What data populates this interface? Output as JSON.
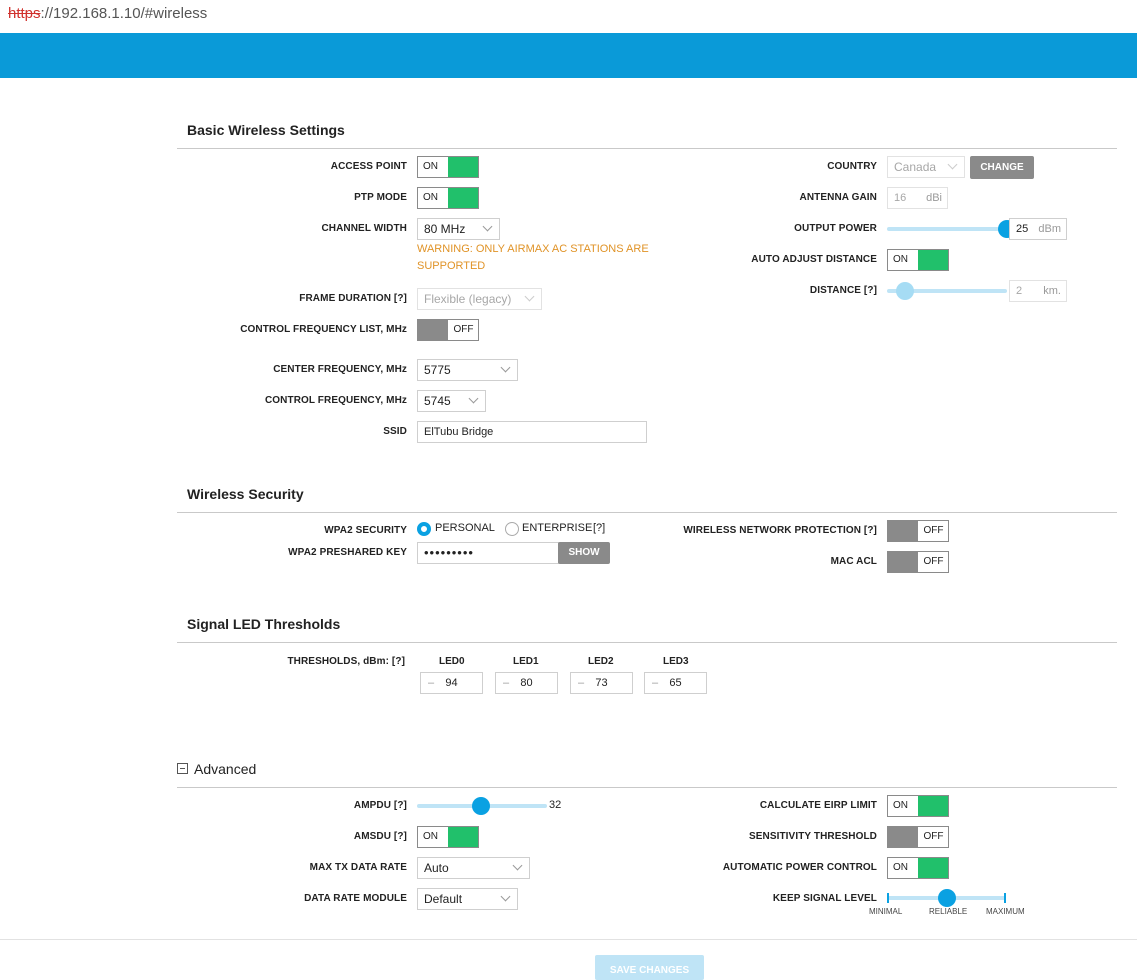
{
  "url": {
    "scheme": "https",
    "rest": "://192.168.1.10/#wireless"
  },
  "colors": {
    "brand": "#0a9ad8",
    "toggle_on": "#21c06b",
    "toggle_off": "#8a8a8a",
    "warning": "#e09327",
    "slider": "#0aa1e2"
  },
  "basic": {
    "title": "Basic Wireless Settings",
    "access_point": {
      "label": "ACCESS POINT",
      "state": "ON"
    },
    "ptp_mode": {
      "label": "PTP MODE",
      "state": "ON"
    },
    "channel_width": {
      "label": "CHANNEL WIDTH",
      "value": "80 MHz"
    },
    "warning": "WARNING: ONLY AIRMAX AC STATIONS ARE SUPPORTED",
    "frame_duration": {
      "label": "FRAME DURATION [?]",
      "value": "Flexible (legacy)"
    },
    "control_freq_list": {
      "label": "CONTROL FREQUENCY LIST, MHz",
      "state": "OFF"
    },
    "center_freq": {
      "label": "CENTER FREQUENCY, MHz",
      "value": "5775"
    },
    "control_freq": {
      "label": "CONTROL FREQUENCY, MHz",
      "value": "5745"
    },
    "ssid": {
      "label": "SSID",
      "value": "ElTubu Bridge"
    },
    "country": {
      "label": "COUNTRY",
      "value": "Canada",
      "button": "CHANGE"
    },
    "antenna_gain": {
      "label": "ANTENNA GAIN",
      "value": "16",
      "unit": "dBi"
    },
    "output_power": {
      "label": "OUTPUT POWER",
      "value": "25",
      "unit": "dBm",
      "level": 1.0
    },
    "auto_adjust_distance": {
      "label": "AUTO ADJUST DISTANCE",
      "state": "ON"
    },
    "distance": {
      "label": "DISTANCE [?]",
      "value": "2",
      "unit": "km.",
      "level": 0.0
    }
  },
  "security": {
    "title": "Wireless Security",
    "wpa2_security": {
      "label": "WPA2 SECURITY",
      "options": [
        "PERSONAL",
        "ENTERPRISE"
      ],
      "selected": "PERSONAL",
      "help": "[?]"
    },
    "preshared_key": {
      "label": "WPA2 PRESHARED KEY",
      "value": "•••••••••",
      "button": "SHOW"
    },
    "wireless_network_protection": {
      "label": "WIRELESS NETWORK PROTECTION [?]",
      "state": "OFF"
    },
    "mac_acl": {
      "label": "MAC ACL",
      "state": "OFF"
    }
  },
  "led": {
    "title": "Signal LED Thresholds",
    "label": "THRESHOLDS, dBm: [?]",
    "items": [
      {
        "name": "LED0",
        "sign": "–",
        "value": "94"
      },
      {
        "name": "LED1",
        "sign": "–",
        "value": "80"
      },
      {
        "name": "LED2",
        "sign": "–",
        "value": "73"
      },
      {
        "name": "LED3",
        "sign": "–",
        "value": "65"
      }
    ]
  },
  "advanced": {
    "title": "Advanced",
    "ampdu": {
      "label": "AMPDU [?]",
      "value": "32",
      "level": 0.5
    },
    "amsdu": {
      "label": "AMSDU [?]",
      "state": "ON"
    },
    "max_tx_rate": {
      "label": "MAX TX DATA RATE",
      "value": "Auto"
    },
    "data_rate_module": {
      "label": "DATA RATE MODULE",
      "value": "Default"
    },
    "calc_eirp": {
      "label": "CALCULATE EIRP LIMIT",
      "state": "ON"
    },
    "sensitivity_threshold": {
      "label": "SENSITIVITY THRESHOLD",
      "state": "OFF"
    },
    "auto_power_control": {
      "label": "AUTOMATIC POWER CONTROL",
      "state": "ON"
    },
    "keep_signal": {
      "label": "KEEP SIGNAL LEVEL",
      "marks": [
        "MINIMAL",
        "RELIABLE",
        "MAXIMUM"
      ],
      "level": 0.5
    }
  },
  "save_button": "SAVE CHANGES"
}
